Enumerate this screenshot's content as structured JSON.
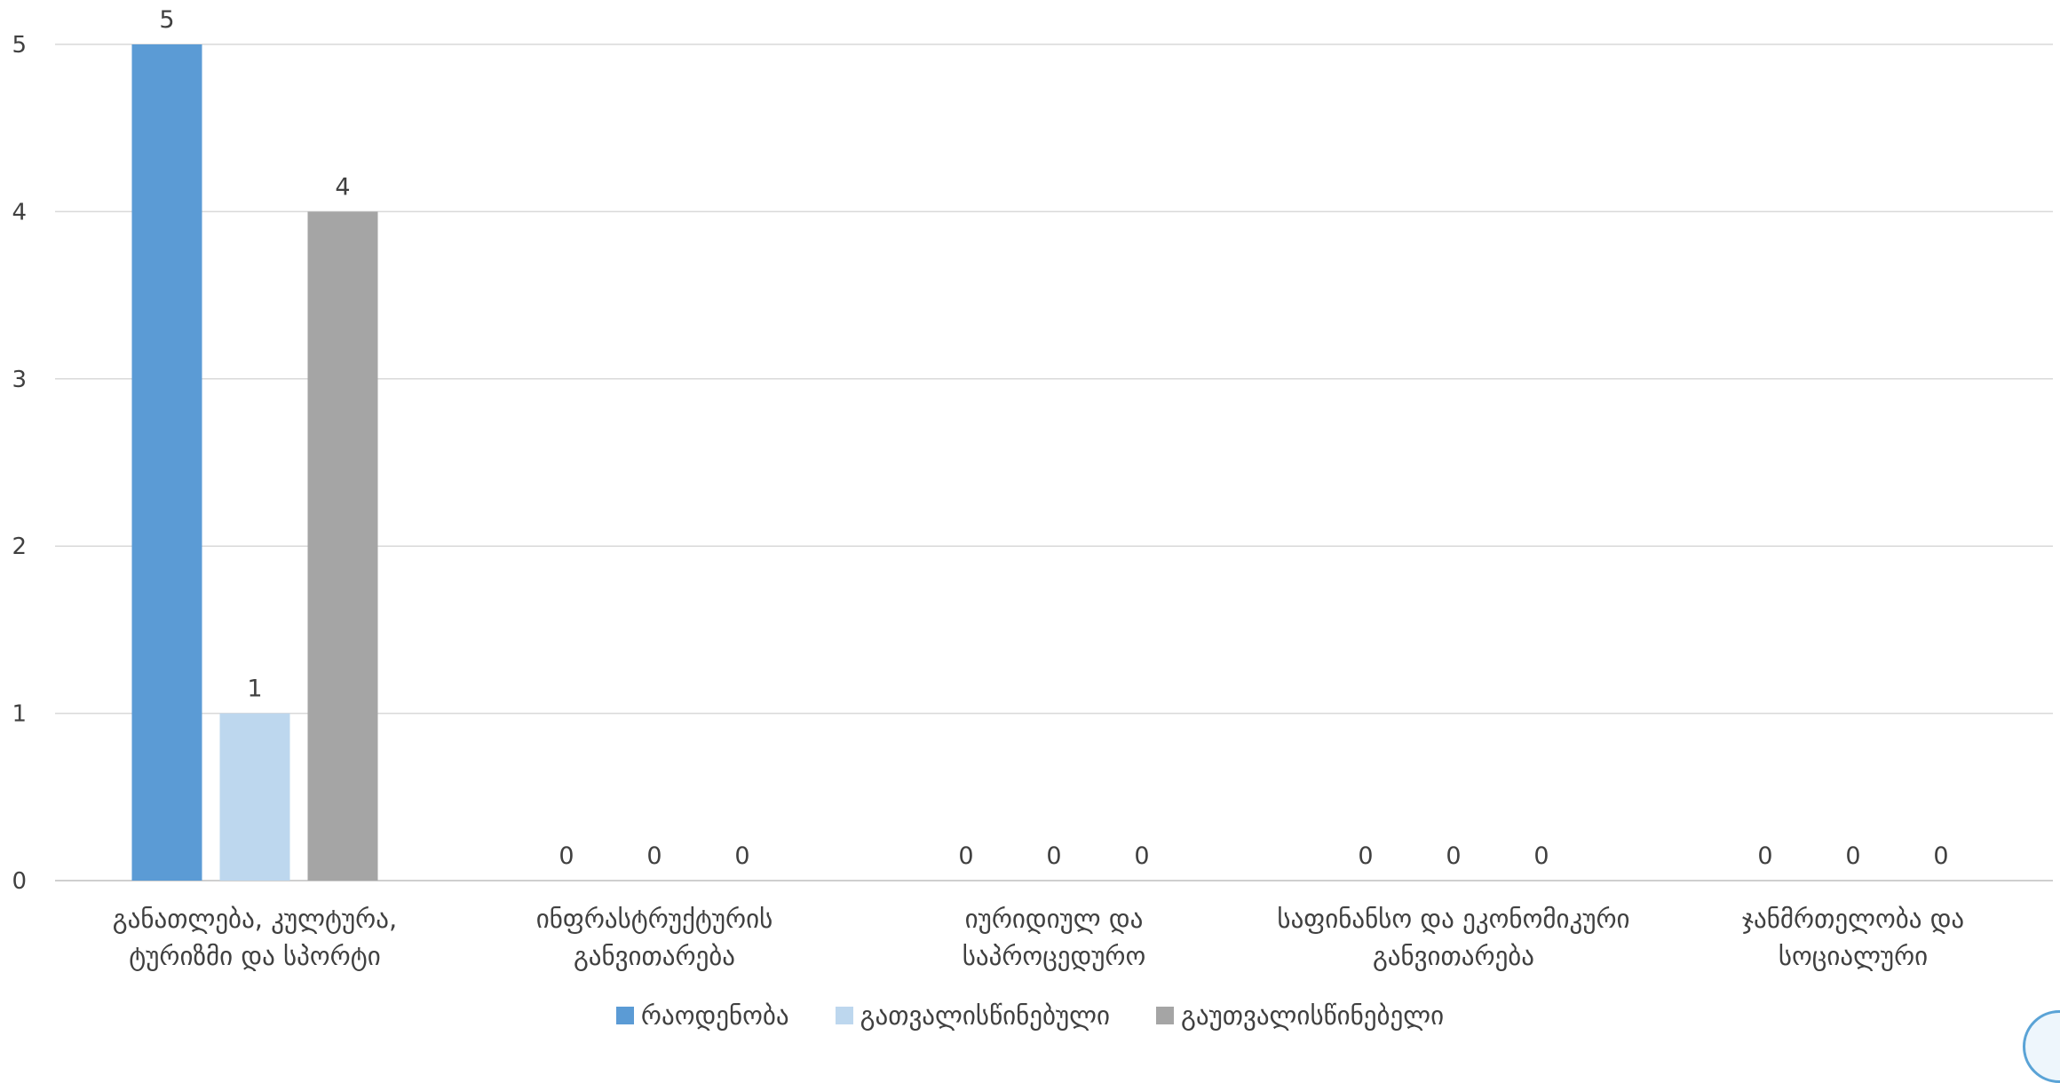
{
  "chart_data": {
    "type": "bar",
    "title": "",
    "categories": [
      [
        "განათლება, კულტურა,",
        "ტურიზმი და სპორტი"
      ],
      [
        "ინფრასტრუქტურის",
        "განვითარება"
      ],
      [
        "იურიდიულ და",
        "საპროცედურო"
      ],
      [
        "საფინანსო და ეკონომიკური",
        "განვითარება"
      ],
      [
        "ჯანმრთელობა და",
        "სოციალური"
      ]
    ],
    "series": [
      {
        "name": "რაოდენობა",
        "color": "#5b9bd5",
        "values": [
          5,
          0,
          0,
          0,
          0
        ]
      },
      {
        "name": "გათვალისწინებული",
        "color": "#bdd7ee",
        "values": [
          1,
          0,
          0,
          0,
          0
        ]
      },
      {
        "name": "გაუთვალისწინებელი",
        "color": "#a5a5a5",
        "values": [
          4,
          0,
          0,
          0,
          0
        ]
      }
    ],
    "ylim": [
      0,
      5
    ],
    "yticks": [
      0,
      1,
      2,
      3,
      4,
      5
    ],
    "grid": true,
    "legend": "bottom",
    "data_labels": true
  }
}
